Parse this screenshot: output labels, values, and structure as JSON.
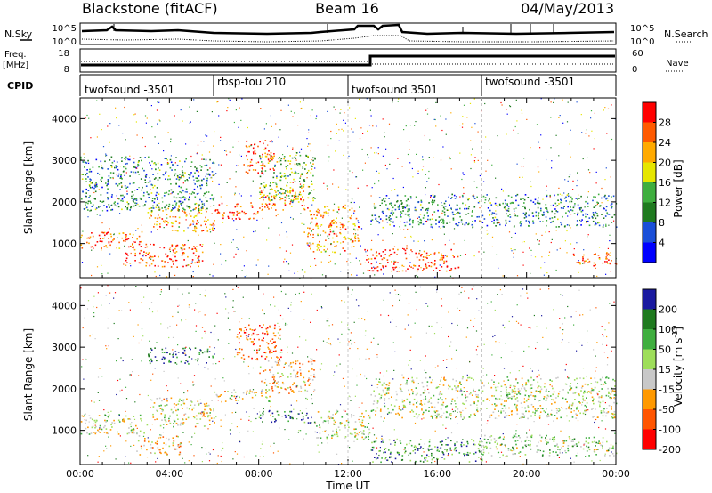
{
  "header": {
    "station": "Blackstone (fitACF)",
    "beam": "Beam 16",
    "date": "04/May/2013"
  },
  "summary_panels": {
    "noise": {
      "left_label": "N.Sky",
      "right_label": "N.Search",
      "left_ticks": [
        "10^5",
        "10^0"
      ],
      "right_ticks": [
        "10^5",
        "10^0"
      ]
    },
    "frequency": {
      "left_label_line1": "Freq.",
      "left_label_line2": "[MHz]",
      "right_label": "Nave",
      "left_ticks": [
        "18",
        "8"
      ],
      "right_ticks": [
        "60",
        "0"
      ]
    },
    "cpid": {
      "label": "CPID",
      "modes": [
        {
          "name": "twofsound -3501",
          "start_hour": 0
        },
        {
          "name": "rbsp-tou 210",
          "start_hour": 6
        },
        {
          "name": "twofsound 3501",
          "start_hour": 12
        },
        {
          "name": "twofsound -3501",
          "start_hour": 18
        }
      ]
    }
  },
  "chart_data": [
    {
      "type": "heatmap",
      "name_printed": "",
      "quantity": "Power",
      "ylabel": "Slant Range [km]",
      "xlim_hours": [
        0,
        24
      ],
      "ylim_km": [
        180,
        4500
      ],
      "yticks": [
        1000,
        2000,
        3000,
        4000
      ],
      "colorbar_label": "Power [dB]",
      "colorbar_ticks": [
        "28",
        "24",
        "20",
        "16",
        "12",
        "8",
        "4"
      ],
      "colorbar_colors": [
        "#ff0000",
        "#ff5a00",
        "#ffaa00",
        "#e6e600",
        "#3fae3f",
        "#1f7a1f",
        "#1a4fd8",
        "#0000ff"
      ],
      "scatter_regions": [
        {
          "t": [
            0.0,
            3.0
          ],
          "r": [
            900,
            1300
          ],
          "level": 0.8
        },
        {
          "t": [
            3.0,
            6.0
          ],
          "r": [
            1300,
            1900
          ],
          "level": 0.7
        },
        {
          "t": [
            2.0,
            5.5
          ],
          "r": [
            450,
            1000
          ],
          "level": 0.85
        },
        {
          "t": [
            6.0,
            8.0
          ],
          "r": [
            1600,
            2000
          ],
          "level": 0.9
        },
        {
          "t": [
            8.0,
            10.0
          ],
          "r": [
            1800,
            2400
          ],
          "level": 0.75
        },
        {
          "t": [
            10.0,
            12.5
          ],
          "r": [
            800,
            1900
          ],
          "level": 0.7
        },
        {
          "t": [
            7.3,
            8.7
          ],
          "r": [
            2700,
            3500
          ],
          "level": 0.9
        },
        {
          "t": [
            8.0,
            10.5
          ],
          "r": [
            2000,
            3200
          ],
          "level": 0.45
        },
        {
          "t": [
            12.7,
            17.0
          ],
          "r": [
            350,
            900
          ],
          "level": 0.85
        },
        {
          "t": [
            13.0,
            24.0
          ],
          "r": [
            1400,
            2200
          ],
          "level": 0.3
        },
        {
          "t": [
            22.0,
            24.0
          ],
          "r": [
            450,
            800
          ],
          "level": 0.8
        },
        {
          "t": [
            0.0,
            6.0
          ],
          "r": [
            1800,
            3100
          ],
          "level": 0.3
        }
      ]
    },
    {
      "type": "heatmap",
      "name_printed": "",
      "quantity": "Velocity",
      "ylabel": "Slant Range [km]",
      "xlabel": "Time UT",
      "xlim_hours": [
        0,
        24
      ],
      "ylim_km": [
        180,
        4500
      ],
      "yticks": [
        1000,
        2000,
        3000,
        4000
      ],
      "xticks": [
        "00:00",
        "04:00",
        "08:00",
        "12:00",
        "16:00",
        "20:00",
        "00:00"
      ],
      "colorbar_label": "Velocity [m s^-1]",
      "colorbar_ticks": [
        "200",
        "100",
        "50",
        "15",
        "-15",
        "-50",
        "-100",
        "-200"
      ],
      "colorbar_colors": [
        "#1a1aa0",
        "#1f7a1f",
        "#3fae3f",
        "#9ede5a",
        "#c8c8c8",
        "#ff9900",
        "#ff5500",
        "#ff0000"
      ],
      "scatter_regions": [
        {
          "t": [
            0.0,
            3.0
          ],
          "r": [
            900,
            1400
          ],
          "level": 0.5
        },
        {
          "t": [
            3.0,
            6.0
          ],
          "r": [
            1100,
            1800
          ],
          "level": 0.45
        },
        {
          "t": [
            2.5,
            4.5
          ],
          "r": [
            400,
            900
          ],
          "level": 0.35
        },
        {
          "t": [
            6.0,
            8.5
          ],
          "r": [
            1700,
            2000
          ],
          "level": 0.45
        },
        {
          "t": [
            8.0,
            10.5
          ],
          "r": [
            1900,
            2700
          ],
          "level": 0.35
        },
        {
          "t": [
            8.0,
            10.5
          ],
          "r": [
            1200,
            1500
          ],
          "level": 0.8
        },
        {
          "t": [
            7.0,
            9.0
          ],
          "r": [
            2700,
            3600
          ],
          "level": 0.15
        },
        {
          "t": [
            3.0,
            6.0
          ],
          "r": [
            2600,
            3000
          ],
          "level": 0.85
        },
        {
          "t": [
            10.5,
            13.0
          ],
          "r": [
            800,
            1500
          ],
          "level": 0.5
        },
        {
          "t": [
            13.0,
            24.0
          ],
          "r": [
            1300,
            2300
          ],
          "level": 0.5
        },
        {
          "t": [
            13.0,
            18.0
          ],
          "r": [
            250,
            800
          ],
          "level": 0.75
        },
        {
          "t": [
            18.0,
            24.0
          ],
          "r": [
            400,
            900
          ],
          "level": 0.55
        }
      ]
    }
  ]
}
